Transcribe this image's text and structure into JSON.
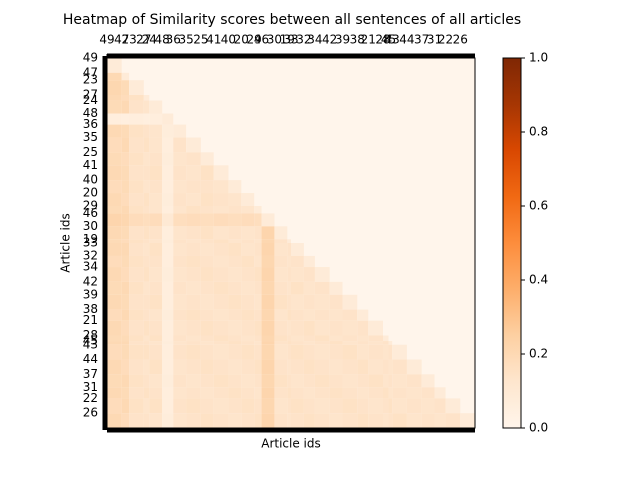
{
  "chart_data": {
    "type": "heatmap",
    "title": "Heatmap of Similarity scores between all sentences of all articles",
    "x_label": "Article ids",
    "y_label": "Article ids",
    "categories": [
      "49",
      "47",
      "23",
      "27",
      "24",
      "48",
      "36",
      "35",
      "25",
      "41",
      "40",
      "20",
      "29",
      "46",
      "30",
      "19",
      "33",
      "32",
      "34",
      "42",
      "39",
      "38",
      "21",
      "28",
      "45",
      "43",
      "44",
      "37",
      "31",
      "22",
      "26"
    ],
    "xlim": [
      0,
      200
    ],
    "xticks": [
      {
        "value": 0,
        "label": "49"
      },
      {
        "value": 8,
        "label": "47"
      },
      {
        "value": 12,
        "label": "23"
      },
      {
        "value": 20,
        "label": "27"
      },
      {
        "value": 23,
        "label": "24"
      },
      {
        "value": 30,
        "label": "48"
      },
      {
        "value": 36,
        "label": "36"
      },
      {
        "value": 43,
        "label": "35"
      },
      {
        "value": 51,
        "label": "25"
      },
      {
        "value": 58,
        "label": "41"
      },
      {
        "value": 66,
        "label": "40"
      },
      {
        "value": 73,
        "label": "20"
      },
      {
        "value": 80,
        "label": "29"
      },
      {
        "value": 84,
        "label": "46"
      },
      {
        "value": 91,
        "label": "30"
      },
      {
        "value": 98,
        "label": "19"
      },
      {
        "value": 100,
        "label": "33"
      },
      {
        "value": 107,
        "label": "32"
      },
      {
        "value": 113,
        "label": "34"
      },
      {
        "value": 121,
        "label": "42"
      },
      {
        "value": 128,
        "label": "39"
      },
      {
        "value": 136,
        "label": "38"
      },
      {
        "value": 142,
        "label": "21"
      },
      {
        "value": 150,
        "label": "28"
      },
      {
        "value": 153,
        "label": "45"
      },
      {
        "value": 155,
        "label": "43"
      },
      {
        "value": 163,
        "label": "44"
      },
      {
        "value": 171,
        "label": "37"
      },
      {
        "value": 178,
        "label": "31"
      },
      {
        "value": 184,
        "label": "22"
      },
      {
        "value": 192,
        "label": "26"
      }
    ],
    "values": [
      [
        0.08
      ],
      [
        0.2,
        0.08
      ],
      [
        0.21,
        0.19,
        0.08
      ],
      [
        0.2,
        0.18,
        0.15,
        0.08
      ],
      [
        0.19,
        0.2,
        0.14,
        0.13,
        0.08
      ],
      [
        0.06,
        0.05,
        0.06,
        0.05,
        0.06,
        0.08
      ],
      [
        0.2,
        0.19,
        0.15,
        0.14,
        0.13,
        0.07,
        0.08
      ],
      [
        0.18,
        0.2,
        0.14,
        0.15,
        0.13,
        0.06,
        0.14,
        0.08
      ],
      [
        0.19,
        0.18,
        0.15,
        0.13,
        0.14,
        0.07,
        0.13,
        0.14,
        0.08
      ],
      [
        0.2,
        0.19,
        0.14,
        0.14,
        0.15,
        0.06,
        0.14,
        0.13,
        0.15,
        0.08
      ],
      [
        0.18,
        0.19,
        0.15,
        0.13,
        0.14,
        0.06,
        0.13,
        0.14,
        0.14,
        0.13,
        0.08
      ],
      [
        0.2,
        0.18,
        0.14,
        0.15,
        0.13,
        0.07,
        0.14,
        0.13,
        0.15,
        0.14,
        0.13,
        0.08
      ],
      [
        0.19,
        0.2,
        0.15,
        0.14,
        0.13,
        0.06,
        0.13,
        0.15,
        0.14,
        0.13,
        0.14,
        0.13,
        0.08
      ],
      [
        0.22,
        0.21,
        0.18,
        0.17,
        0.18,
        0.1,
        0.17,
        0.18,
        0.17,
        0.18,
        0.17,
        0.18,
        0.17,
        0.08
      ],
      [
        0.2,
        0.19,
        0.14,
        0.15,
        0.14,
        0.06,
        0.13,
        0.14,
        0.15,
        0.13,
        0.14,
        0.13,
        0.14,
        0.22,
        0.08
      ],
      [
        0.19,
        0.18,
        0.15,
        0.14,
        0.13,
        0.07,
        0.14,
        0.13,
        0.14,
        0.15,
        0.13,
        0.14,
        0.13,
        0.21,
        0.14,
        0.08
      ],
      [
        0.2,
        0.2,
        0.14,
        0.13,
        0.15,
        0.06,
        0.13,
        0.14,
        0.13,
        0.14,
        0.15,
        0.13,
        0.14,
        0.22,
        0.13,
        0.14,
        0.08
      ],
      [
        0.18,
        0.19,
        0.15,
        0.14,
        0.14,
        0.06,
        0.14,
        0.15,
        0.14,
        0.13,
        0.14,
        0.15,
        0.13,
        0.21,
        0.14,
        0.13,
        0.14,
        0.08
      ],
      [
        0.2,
        0.18,
        0.14,
        0.15,
        0.13,
        0.07,
        0.13,
        0.14,
        0.15,
        0.14,
        0.13,
        0.14,
        0.15,
        0.22,
        0.13,
        0.14,
        0.13,
        0.14,
        0.08
      ],
      [
        0.19,
        0.2,
        0.15,
        0.13,
        0.14,
        0.06,
        0.14,
        0.13,
        0.14,
        0.15,
        0.14,
        0.13,
        0.14,
        0.21,
        0.14,
        0.13,
        0.15,
        0.13,
        0.14,
        0.08
      ],
      [
        0.2,
        0.19,
        0.14,
        0.14,
        0.15,
        0.06,
        0.13,
        0.14,
        0.13,
        0.14,
        0.15,
        0.14,
        0.13,
        0.22,
        0.15,
        0.14,
        0.13,
        0.14,
        0.13,
        0.14,
        0.08
      ],
      [
        0.18,
        0.2,
        0.15,
        0.14,
        0.13,
        0.07,
        0.14,
        0.15,
        0.14,
        0.13,
        0.14,
        0.15,
        0.14,
        0.21,
        0.13,
        0.15,
        0.14,
        0.13,
        0.14,
        0.13,
        0.14,
        0.08
      ],
      [
        0.2,
        0.18,
        0.14,
        0.15,
        0.14,
        0.06,
        0.13,
        0.14,
        0.15,
        0.14,
        0.13,
        0.14,
        0.15,
        0.22,
        0.14,
        0.13,
        0.14,
        0.15,
        0.13,
        0.14,
        0.13,
        0.14,
        0.08
      ],
      [
        0.19,
        0.19,
        0.15,
        0.13,
        0.15,
        0.06,
        0.14,
        0.13,
        0.14,
        0.15,
        0.14,
        0.13,
        0.14,
        0.21,
        0.15,
        0.14,
        0.13,
        0.14,
        0.15,
        0.13,
        0.14,
        0.13,
        0.14,
        0.08
      ],
      [
        0.2,
        0.2,
        0.14,
        0.14,
        0.13,
        0.07,
        0.13,
        0.14,
        0.13,
        0.14,
        0.15,
        0.14,
        0.13,
        0.22,
        0.14,
        0.15,
        0.14,
        0.13,
        0.14,
        0.15,
        0.13,
        0.14,
        0.13,
        0.14,
        0.08
      ],
      [
        0.18,
        0.19,
        0.15,
        0.15,
        0.14,
        0.06,
        0.14,
        0.15,
        0.14,
        0.13,
        0.14,
        0.15,
        0.14,
        0.21,
        0.13,
        0.14,
        0.15,
        0.14,
        0.13,
        0.14,
        0.15,
        0.13,
        0.14,
        0.13,
        0.14,
        0.08
      ],
      [
        0.2,
        0.18,
        0.14,
        0.13,
        0.15,
        0.06,
        0.13,
        0.14,
        0.15,
        0.14,
        0.13,
        0.14,
        0.15,
        0.22,
        0.14,
        0.13,
        0.14,
        0.15,
        0.14,
        0.13,
        0.14,
        0.15,
        0.13,
        0.14,
        0.13,
        0.14,
        0.08
      ],
      [
        0.19,
        0.2,
        0.15,
        0.14,
        0.13,
        0.07,
        0.14,
        0.13,
        0.14,
        0.15,
        0.14,
        0.13,
        0.14,
        0.21,
        0.15,
        0.14,
        0.13,
        0.14,
        0.15,
        0.14,
        0.13,
        0.14,
        0.15,
        0.13,
        0.14,
        0.13,
        0.14,
        0.08
      ],
      [
        0.2,
        0.19,
        0.14,
        0.15,
        0.14,
        0.06,
        0.13,
        0.14,
        0.13,
        0.14,
        0.15,
        0.14,
        0.13,
        0.22,
        0.14,
        0.15,
        0.14,
        0.13,
        0.14,
        0.15,
        0.14,
        0.13,
        0.14,
        0.15,
        0.13,
        0.14,
        0.13,
        0.14,
        0.08
      ],
      [
        0.18,
        0.2,
        0.15,
        0.13,
        0.15,
        0.06,
        0.14,
        0.15,
        0.14,
        0.13,
        0.14,
        0.15,
        0.14,
        0.21,
        0.13,
        0.14,
        0.15,
        0.14,
        0.13,
        0.14,
        0.15,
        0.14,
        0.13,
        0.14,
        0.15,
        0.13,
        0.14,
        0.13,
        0.14,
        0.08
      ],
      [
        0.2,
        0.18,
        0.14,
        0.14,
        0.13,
        0.07,
        0.13,
        0.14,
        0.15,
        0.14,
        0.13,
        0.14,
        0.15,
        0.22,
        0.14,
        0.13,
        0.14,
        0.15,
        0.14,
        0.13,
        0.14,
        0.15,
        0.14,
        0.13,
        0.14,
        0.15,
        0.13,
        0.14,
        0.13,
        0.14,
        0.08
      ]
    ],
    "colormap": [
      "#fff5eb",
      "#fee6ce",
      "#fdd0a2",
      "#fdae6b",
      "#fd8d3c",
      "#f16913",
      "#d94801",
      "#a63603",
      "#7f2704"
    ],
    "clim": [
      0,
      1
    ],
    "cticks": [
      {
        "value": 0,
        "label": "0.0"
      },
      {
        "value": 0.2,
        "label": "0.2"
      },
      {
        "value": 0.4,
        "label": "0.4"
      },
      {
        "value": 0.6,
        "label": "0.6"
      },
      {
        "value": 0.8,
        "label": "0.8"
      },
      {
        "value": 1,
        "label": "1.0"
      }
    ]
  }
}
